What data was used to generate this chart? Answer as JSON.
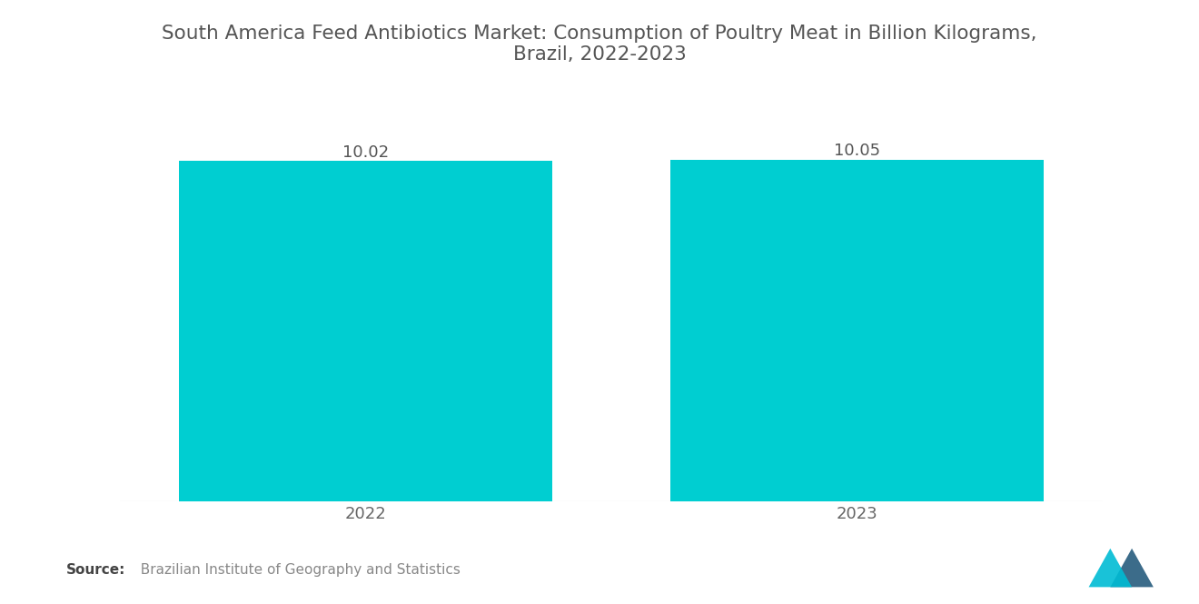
{
  "title": "South America Feed Antibiotics Market: Consumption of Poultry Meat in Billion Kilograms,\nBrazil, 2022-2023",
  "categories": [
    "2022",
    "2023"
  ],
  "values": [
    10.02,
    10.05
  ],
  "bar_color": "#00CED1",
  "value_labels": [
    "10.02",
    "10.05"
  ],
  "source_bold": "Source:",
  "source_text": "  Brazilian Institute of Geography and Statistics",
  "background_color": "#ffffff",
  "title_color": "#555555",
  "label_color": "#666666",
  "value_color": "#555555",
  "bar_width": 0.38,
  "ylim_min": 0,
  "ylim_max": 10.12,
  "bar_bottom": 0,
  "title_fontsize": 15.5,
  "tick_fontsize": 13,
  "value_fontsize": 13,
  "source_fontsize": 11,
  "logo_tri1_color": "#00BCD4",
  "logo_tri2_color": "#1A5276"
}
